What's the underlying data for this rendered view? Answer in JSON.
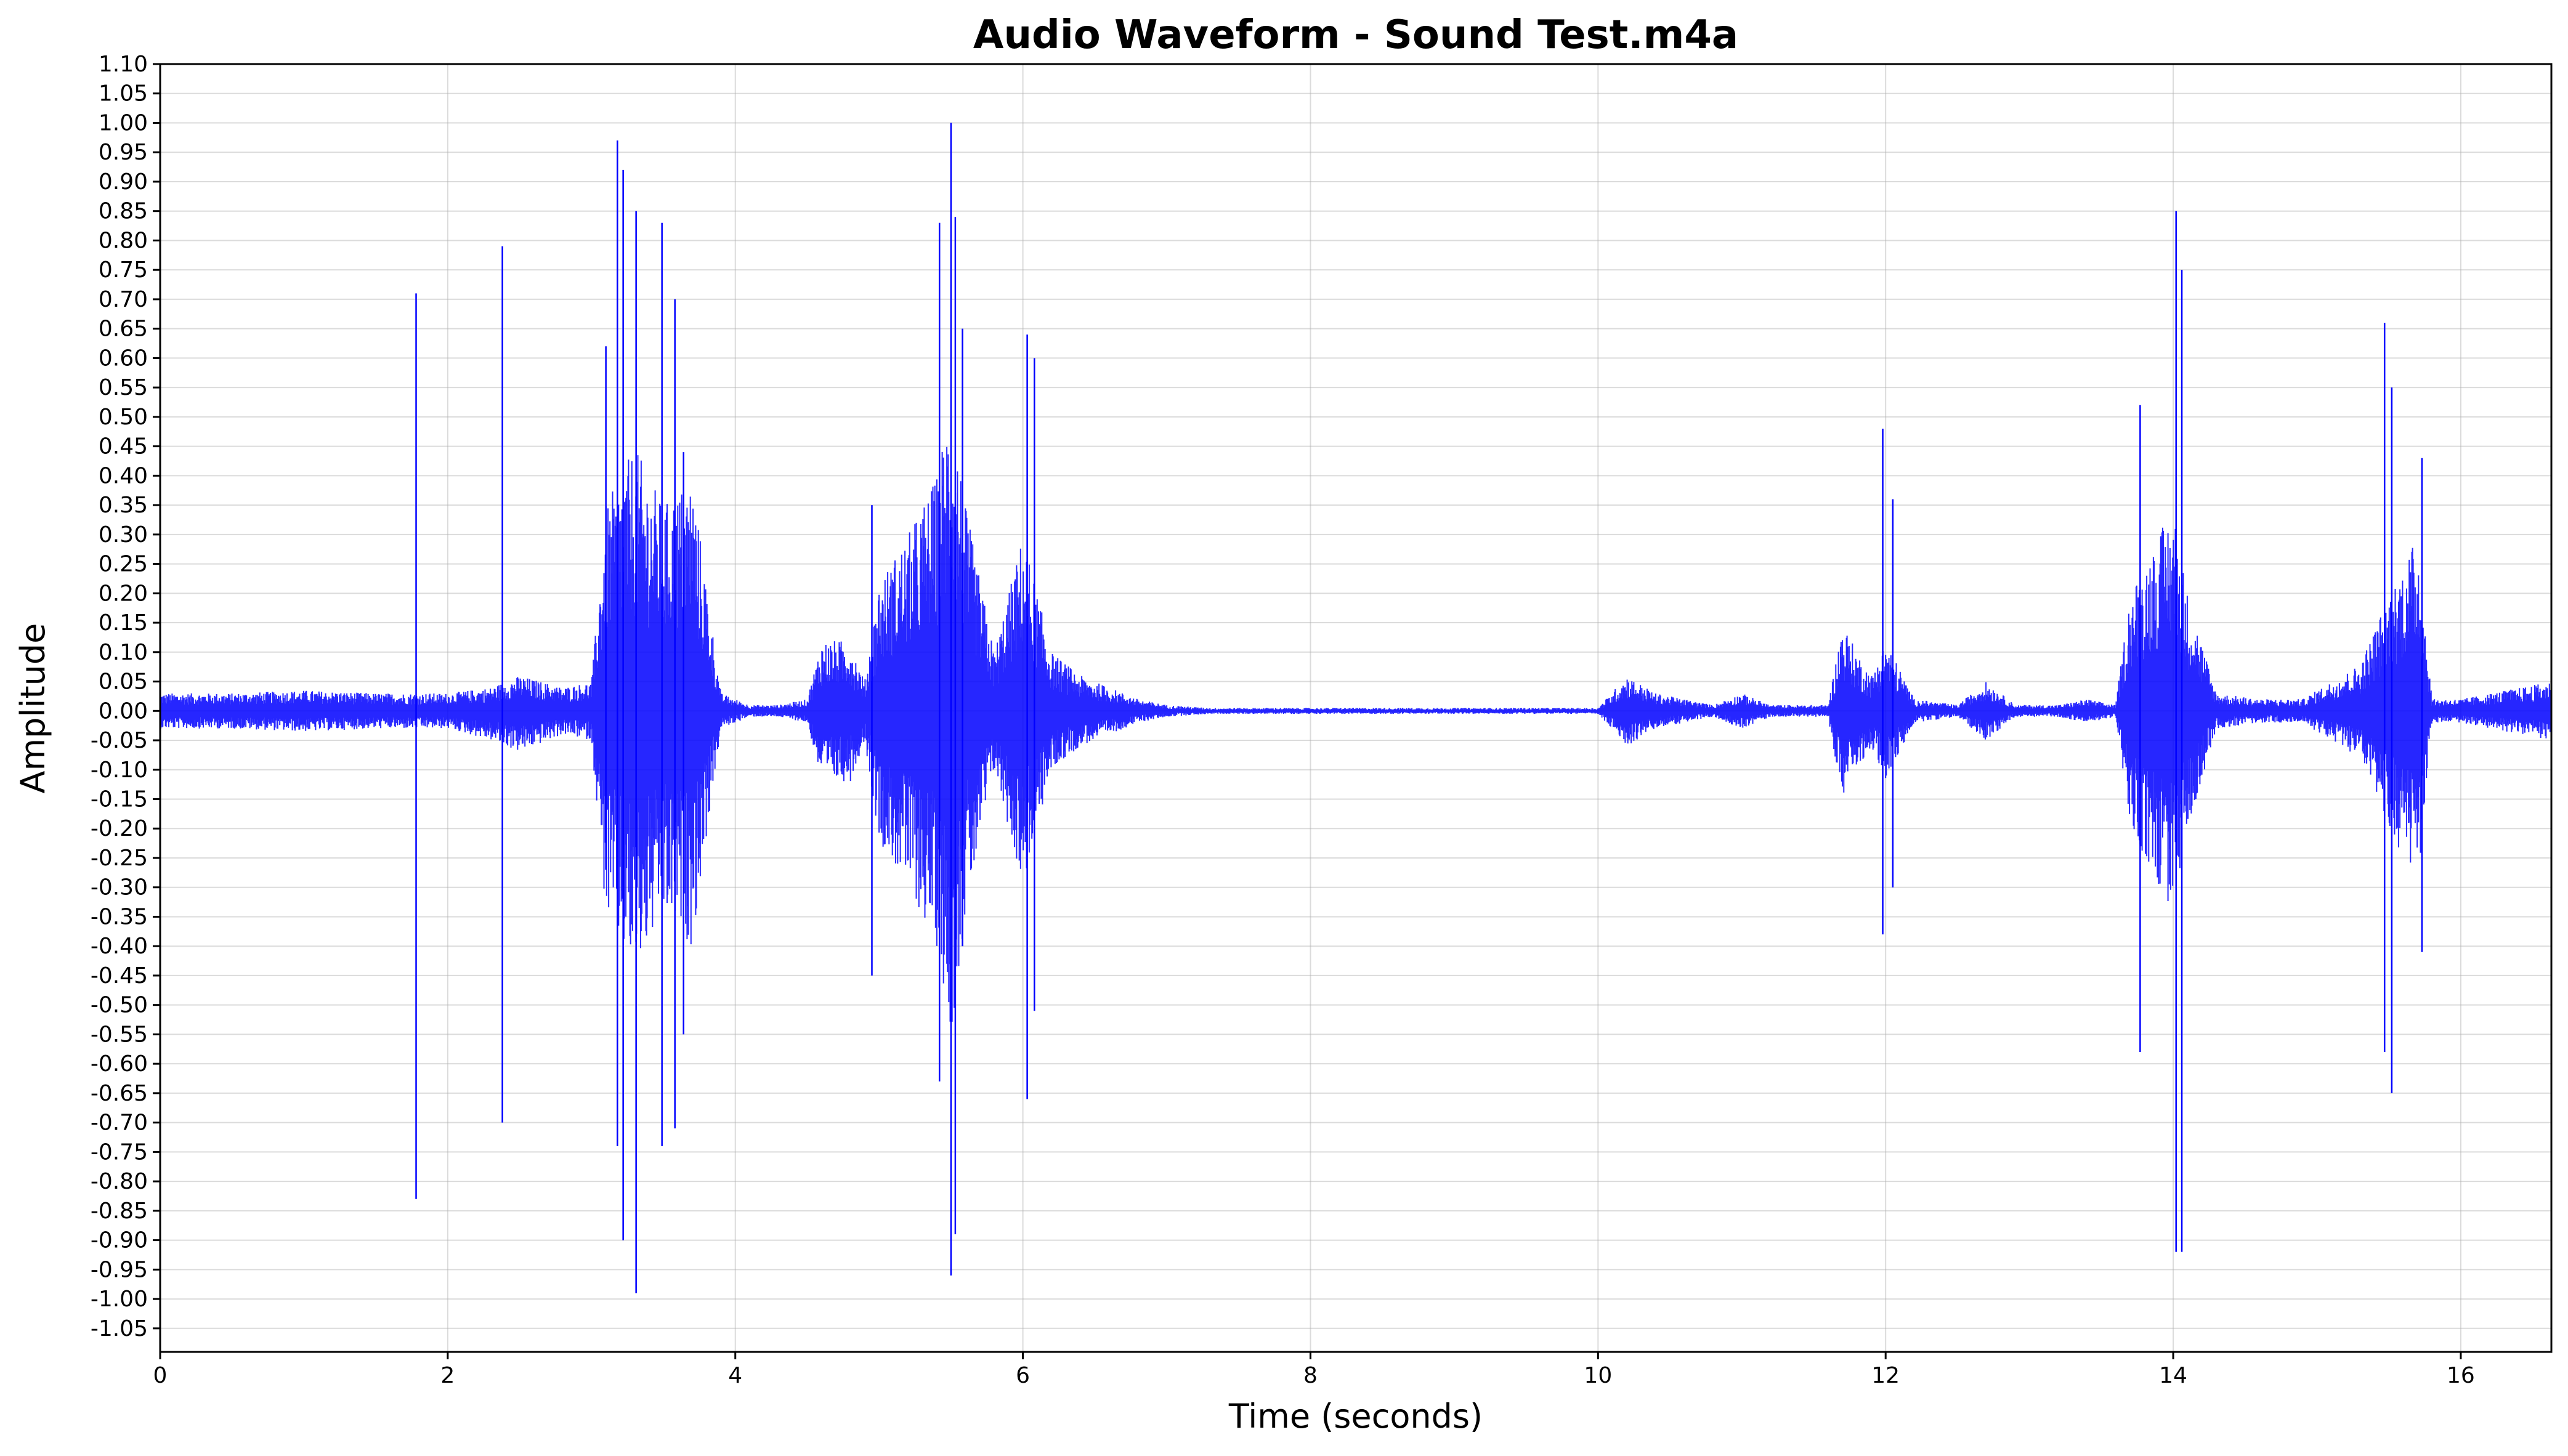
{
  "chart_data": {
    "type": "line",
    "title": "Audio Waveform - Sound Test.m4a",
    "xlabel": "Time (seconds)",
    "ylabel": "Amplitude",
    "xlim": [
      0,
      16.63
    ],
    "ylim": [
      -1.09,
      1.1
    ],
    "x_ticks": [
      "0",
      "2",
      "4",
      "6",
      "8",
      "10",
      "12",
      "14",
      "16"
    ],
    "y_ticks": [
      "1.10",
      "1.05",
      "1.00",
      "0.95",
      "0.90",
      "0.85",
      "0.80",
      "0.75",
      "0.70",
      "0.65",
      "0.60",
      "0.55",
      "0.50",
      "0.45",
      "0.40",
      "0.35",
      "0.30",
      "0.25",
      "0.20",
      "0.15",
      "0.10",
      "0.05",
      "0.00",
      "-0.05",
      "-0.10",
      "-0.15",
      "-0.20",
      "-0.25",
      "-0.30",
      "-0.35",
      "-0.40",
      "-0.45",
      "-0.50",
      "-0.55",
      "-0.60",
      "-0.65",
      "-0.70",
      "-0.75",
      "-0.80",
      "-0.85",
      "-0.90",
      "-0.95",
      "-1.00",
      "-1.05"
    ],
    "grid": true,
    "line_color": "#0000ff",
    "series": [
      {
        "envelope_x": [
          0.0,
          0.5,
          1.0,
          1.5,
          1.75,
          2.0,
          2.3,
          2.5,
          2.8,
          3.0,
          3.1,
          3.3,
          3.5,
          3.7,
          3.9,
          4.1,
          4.3,
          4.5,
          4.6,
          4.8,
          4.9,
          5.0,
          5.2,
          5.4,
          5.5,
          5.6,
          5.8,
          6.0,
          6.2,
          6.4,
          6.6,
          6.8,
          7.0,
          7.3,
          8.0,
          9.0,
          10.0,
          10.2,
          10.4,
          10.8,
          11.0,
          11.2,
          11.6,
          11.7,
          11.8,
          11.9,
          12.0,
          12.2,
          12.5,
          12.7,
          12.9,
          13.2,
          13.4,
          13.6,
          13.7,
          13.9,
          14.0,
          14.1,
          14.3,
          14.6,
          14.9,
          15.1,
          15.3,
          15.5,
          15.7,
          15.8,
          16.0,
          16.63
        ],
        "envelope_max": [
          0.03,
          0.03,
          0.035,
          0.03,
          0.03,
          0.03,
          0.04,
          0.06,
          0.04,
          0.05,
          0.35,
          0.45,
          0.35,
          0.4,
          0.03,
          0.01,
          0.01,
          0.02,
          0.12,
          0.12,
          0.05,
          0.22,
          0.3,
          0.4,
          0.55,
          0.35,
          0.1,
          0.3,
          0.1,
          0.06,
          0.04,
          0.02,
          0.01,
          0.005,
          0.005,
          0.005,
          0.005,
          0.06,
          0.03,
          0.01,
          0.03,
          0.01,
          0.01,
          0.15,
          0.1,
          0.06,
          0.12,
          0.02,
          0.01,
          0.05,
          0.01,
          0.01,
          0.02,
          0.01,
          0.2,
          0.3,
          0.35,
          0.2,
          0.03,
          0.02,
          0.02,
          0.05,
          0.08,
          0.2,
          0.3,
          0.02,
          0.02,
          0.05
        ],
        "envelope_min": [
          -0.03,
          -0.03,
          -0.035,
          -0.03,
          -0.03,
          -0.03,
          -0.05,
          -0.07,
          -0.04,
          -0.05,
          -0.35,
          -0.45,
          -0.35,
          -0.4,
          -0.03,
          -0.01,
          -0.01,
          -0.02,
          -0.12,
          -0.12,
          -0.05,
          -0.22,
          -0.3,
          -0.4,
          -0.55,
          -0.35,
          -0.1,
          -0.3,
          -0.1,
          -0.06,
          -0.04,
          -0.02,
          -0.01,
          -0.005,
          -0.005,
          -0.005,
          -0.005,
          -0.06,
          -0.03,
          -0.01,
          -0.03,
          -0.01,
          -0.01,
          -0.15,
          -0.1,
          -0.06,
          -0.12,
          -0.02,
          -0.01,
          -0.05,
          -0.01,
          -0.01,
          -0.02,
          -0.01,
          -0.2,
          -0.3,
          -0.35,
          -0.2,
          -0.03,
          -0.02,
          -0.02,
          -0.05,
          -0.08,
          -0.2,
          -0.3,
          -0.02,
          -0.02,
          -0.05
        ],
        "peaks": [
          {
            "x": 1.78,
            "max": 0.71,
            "min": -0.83
          },
          {
            "x": 2.38,
            "max": 0.79,
            "min": -0.7
          },
          {
            "x": 3.1,
            "max": 0.62,
            "min": -0.27
          },
          {
            "x": 3.18,
            "max": 0.97,
            "min": -0.74
          },
          {
            "x": 3.22,
            "max": 0.92,
            "min": -0.9
          },
          {
            "x": 3.31,
            "max": 0.85,
            "min": -0.99
          },
          {
            "x": 3.49,
            "max": 0.83,
            "min": -0.74
          },
          {
            "x": 3.58,
            "max": 0.7,
            "min": -0.71
          },
          {
            "x": 3.64,
            "max": 0.44,
            "min": -0.55
          },
          {
            "x": 4.95,
            "max": 0.35,
            "min": -0.45
          },
          {
            "x": 5.42,
            "max": 0.83,
            "min": -0.63
          },
          {
            "x": 5.5,
            "max": 1.0,
            "min": -0.96
          },
          {
            "x": 5.53,
            "max": 0.84,
            "min": -0.89
          },
          {
            "x": 5.58,
            "max": 0.65,
            "min": -0.4
          },
          {
            "x": 6.03,
            "max": 0.64,
            "min": -0.66
          },
          {
            "x": 6.08,
            "max": 0.6,
            "min": -0.51
          },
          {
            "x": 11.98,
            "max": 0.48,
            "min": -0.38
          },
          {
            "x": 12.05,
            "max": 0.36,
            "min": -0.3
          },
          {
            "x": 13.77,
            "max": 0.52,
            "min": -0.58
          },
          {
            "x": 14.02,
            "max": 0.85,
            "min": -0.92
          },
          {
            "x": 14.06,
            "max": 0.75,
            "min": -0.92
          },
          {
            "x": 15.47,
            "max": 0.66,
            "min": -0.58
          },
          {
            "x": 15.52,
            "max": 0.55,
            "min": -0.65
          },
          {
            "x": 15.73,
            "max": 0.43,
            "min": -0.41
          }
        ]
      }
    ]
  }
}
